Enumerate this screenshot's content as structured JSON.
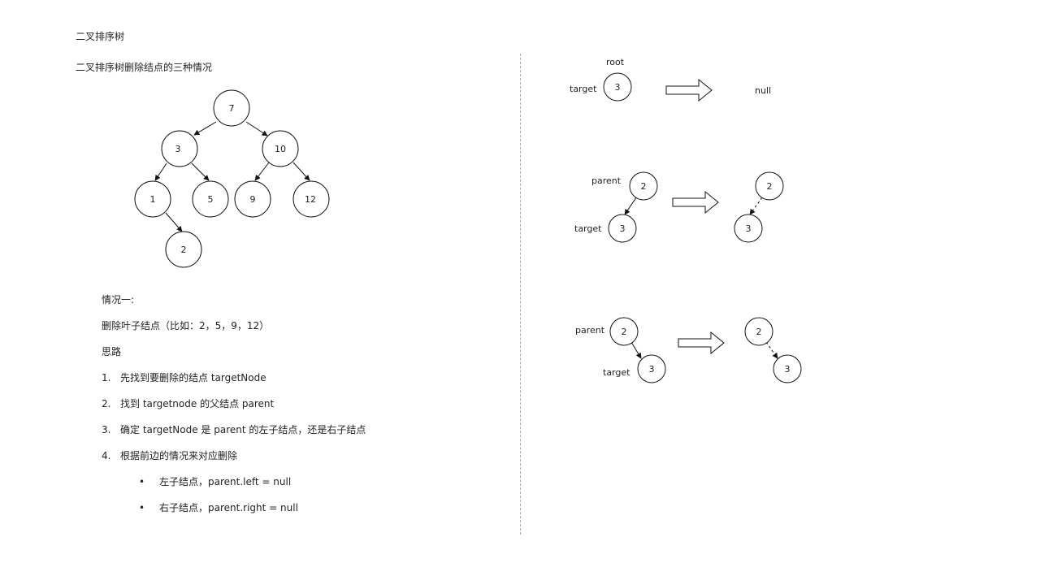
{
  "header": {
    "title": "二叉排序树",
    "subtitle": "二叉排序树删除结点的三种情况"
  },
  "tree": {
    "root": "7",
    "left": "3",
    "right": "10",
    "left_left": "1",
    "left_right": "5",
    "right_left": "9",
    "right_right": "12",
    "left_left_right": "2"
  },
  "explanation": {
    "case_label": "情况一:",
    "leaf_delete": "删除叶子结点（比如：2，5，9，12）",
    "idea_label": "思路",
    "steps": [
      {
        "num": "1.",
        "text": "先找到要删除的结点  targetNode"
      },
      {
        "num": "2.",
        "text": "找到 targetnode  的父结点  parent"
      },
      {
        "num": "3.",
        "text": "确定 targetNode  是 parent 的左子结点，还是右子结点"
      },
      {
        "num": "4.",
        "text": "根据前边的情况来对应删除"
      }
    ],
    "bullets": [
      {
        "mark": "•",
        "text": "左子结点，parent.left  = null"
      },
      {
        "mark": "•",
        "text": "右子结点，parent.right   = null"
      }
    ]
  },
  "right_examples": {
    "example1": {
      "root_label": "root",
      "target_label": "target",
      "node": "3",
      "result": "null"
    },
    "example2": {
      "parent_label": "parent",
      "target_label": "target",
      "parent_node": "2",
      "target_node": "3",
      "result_parent": "2",
      "result_child": "3"
    },
    "example3": {
      "parent_label": "parent",
      "target_label": "target",
      "parent_node": "2",
      "target_node": "3",
      "result_parent": "2",
      "result_child": "3"
    }
  }
}
